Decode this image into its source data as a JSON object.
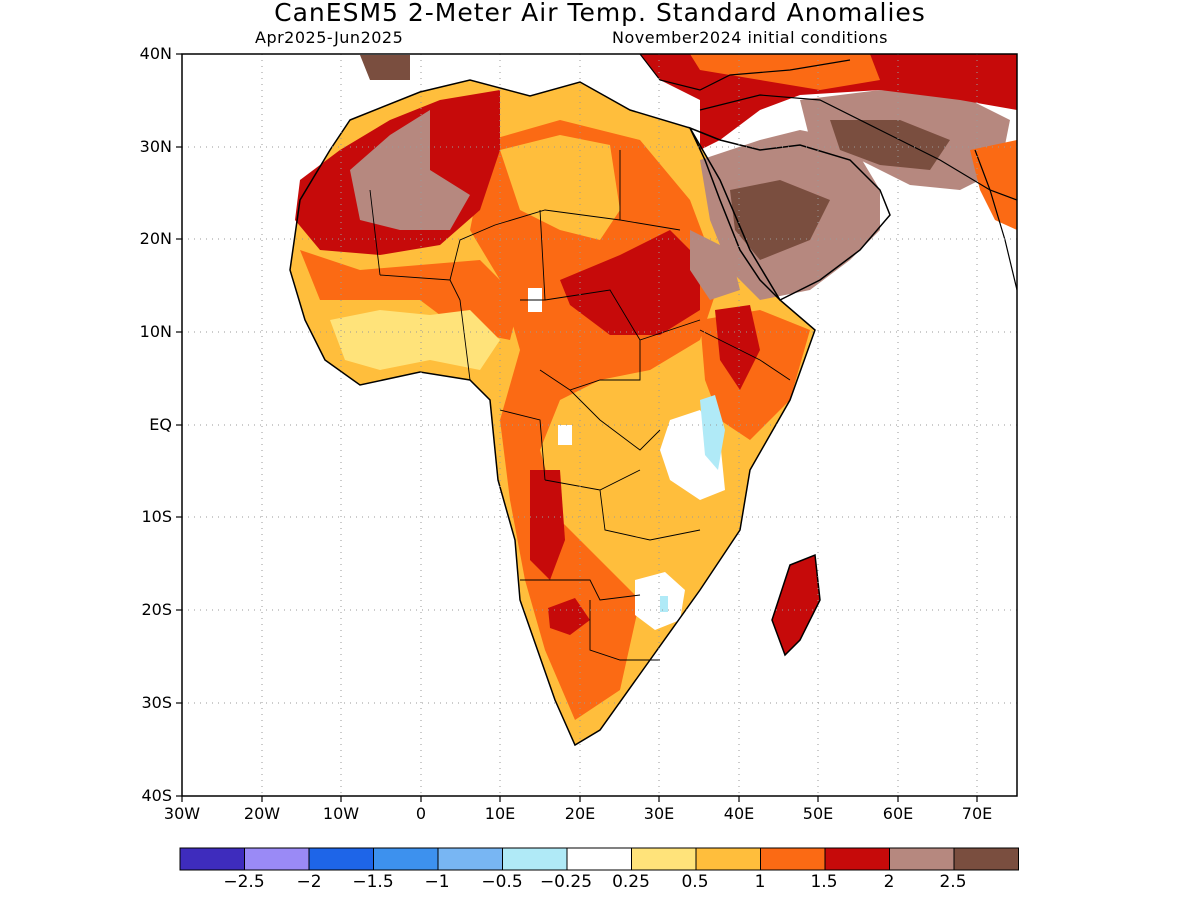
{
  "title": "CanESM5 2-Meter Air Temp. Standard Anomalies",
  "subtitle_left": "Apr2025-Jun2025",
  "subtitle_right": "November2024 initial conditions",
  "axes": {
    "lat_labels": [
      "40N",
      "30N",
      "20N",
      "10N",
      "EQ",
      "10S",
      "20S",
      "30S",
      "40S"
    ],
    "lon_labels": [
      "30W",
      "20W",
      "10W",
      "0",
      "10E",
      "20E",
      "30E",
      "40E",
      "50E",
      "60E",
      "70E"
    ],
    "lat_range": [
      -40,
      40
    ],
    "lon_range": [
      -30,
      75
    ],
    "grid": "dotted"
  },
  "colorbar": {
    "colors": [
      "#3e2cbd",
      "#9a8af6",
      "#1e65e8",
      "#3d91ee",
      "#78b6f3",
      "#b0eaf7",
      "#ffffff",
      "#ffe37a",
      "#ffbe3c",
      "#fb6a14",
      "#c60a0a",
      "#b6887f",
      "#7a4e3f"
    ],
    "labels": [
      "−2.5",
      "−2",
      "−1.5",
      "−1",
      "−0.5",
      "−0.25",
      "0.25",
      "0.5",
      "1",
      "1.5",
      "2",
      "2.5"
    ]
  }
}
